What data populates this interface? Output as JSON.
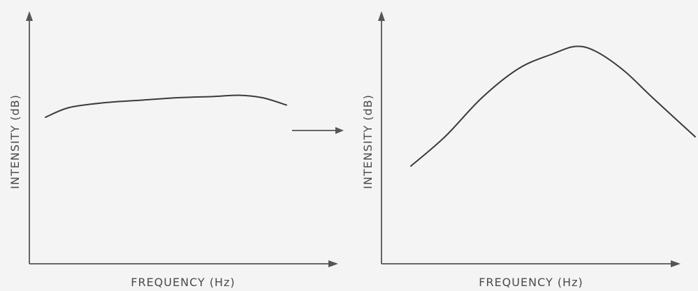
{
  "chart_data": [
    {
      "type": "line",
      "title": "",
      "xlabel": "FREQUENCY (Hz)",
      "ylabel": "INTENSITY (dB)",
      "grid": false,
      "series": [
        {
          "x": [
            0.0,
            0.1,
            0.25,
            0.4,
            0.55,
            0.7,
            0.8,
            0.9,
            1.0
          ],
          "y": [
            0.6,
            0.64,
            0.66,
            0.67,
            0.68,
            0.685,
            0.69,
            0.68,
            0.65
          ]
        }
      ]
    },
    {
      "type": "line",
      "title": "",
      "xlabel": "FREQUENCY (Hz)",
      "ylabel": "INTENSITY (dB)",
      "grid": false,
      "series": [
        {
          "x": [
            0.0,
            0.12,
            0.25,
            0.38,
            0.5,
            0.58,
            0.65,
            0.75,
            0.85,
            1.0
          ],
          "y": [
            0.4,
            0.52,
            0.68,
            0.8,
            0.86,
            0.89,
            0.87,
            0.79,
            0.68,
            0.52
          ]
        }
      ]
    }
  ],
  "transition_arrow": true
}
